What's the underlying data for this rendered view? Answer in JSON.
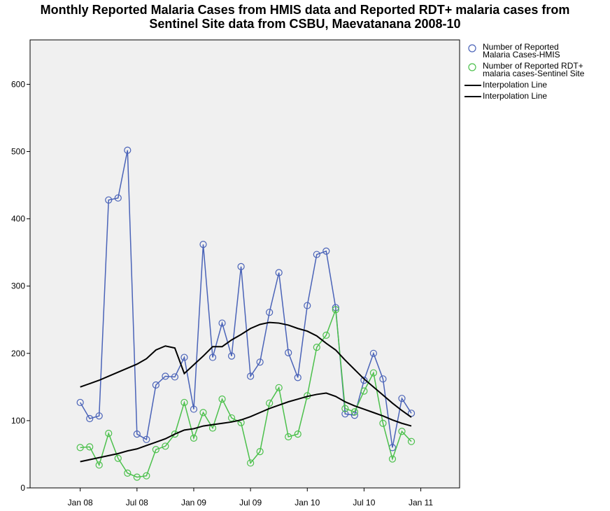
{
  "chart_data": {
    "type": "line",
    "title": "Monthly Reported Malaria Cases from HMIS data and Reported RDT+ malaria cases from Sentinel Site data from CSBU, Maevatanana 2008-10",
    "x": [
      0,
      1,
      2,
      3,
      4,
      5,
      6,
      7,
      8,
      9,
      10,
      11,
      12,
      13,
      14,
      15,
      16,
      17,
      18,
      19,
      20,
      21,
      22,
      23,
      24,
      25,
      26,
      27,
      28,
      29,
      30,
      31,
      32,
      33,
      34,
      35
    ],
    "xlim": [
      -5.3,
      40.1
    ],
    "xticks": [
      {
        "value": 0,
        "label": "Jan 08"
      },
      {
        "value": 6,
        "label": "Jul 08"
      },
      {
        "value": 12,
        "label": "Jan 09"
      },
      {
        "value": 18,
        "label": "Jul 09"
      },
      {
        "value": 24,
        "label": "Jan 10"
      },
      {
        "value": 30,
        "label": "Jul 10"
      },
      {
        "value": 36,
        "label": "Jan 11"
      }
    ],
    "ylim": [
      0,
      666
    ],
    "yticks": [
      0,
      100,
      200,
      300,
      400,
      500,
      600
    ],
    "series": [
      {
        "name": "Number of Reported Malaria Cases-HMIS",
        "color": "#4a63b8",
        "marker": "circle",
        "values": [
          127,
          103,
          107,
          428,
          431,
          502,
          80,
          72,
          153,
          166,
          165,
          194,
          117,
          362,
          194,
          245,
          196,
          329,
          166,
          187,
          261,
          320,
          201,
          164,
          271,
          347,
          352,
          268,
          110,
          108,
          160,
          200,
          162,
          60,
          133,
          111
        ]
      },
      {
        "name": "Number of Reported RDT+ malaria cases-Sentinel Site",
        "color": "#4bc04b",
        "marker": "circle",
        "values": [
          60,
          61,
          34,
          81,
          44,
          22,
          16,
          18,
          57,
          62,
          80,
          127,
          74,
          112,
          89,
          132,
          104,
          97,
          37,
          54,
          126,
          149,
          76,
          80,
          137,
          209,
          227,
          265,
          118,
          113,
          144,
          171,
          96,
          43,
          84,
          69
        ]
      },
      {
        "name": "Interpolation Line",
        "color": "#000000",
        "marker": "none",
        "values": [
          150,
          155,
          160,
          166,
          172,
          178,
          184,
          192,
          205,
          211,
          208,
          170,
          183,
          196,
          210,
          210,
          220,
          228,
          237,
          243,
          246,
          245,
          242,
          237,
          233,
          226,
          215,
          205,
          190,
          176,
          162,
          150,
          138,
          126,
          115,
          105
        ]
      },
      {
        "name": "Interpolation Line",
        "color": "#000000",
        "marker": "none",
        "values": [
          39,
          42,
          45,
          48,
          51,
          55,
          58,
          63,
          68,
          73,
          80,
          86,
          88,
          92,
          94,
          96,
          98,
          101,
          106,
          112,
          118,
          123,
          128,
          132,
          136,
          139,
          141,
          136,
          128,
          122,
          117,
          112,
          107,
          101,
          96,
          92
        ]
      }
    ]
  }
}
